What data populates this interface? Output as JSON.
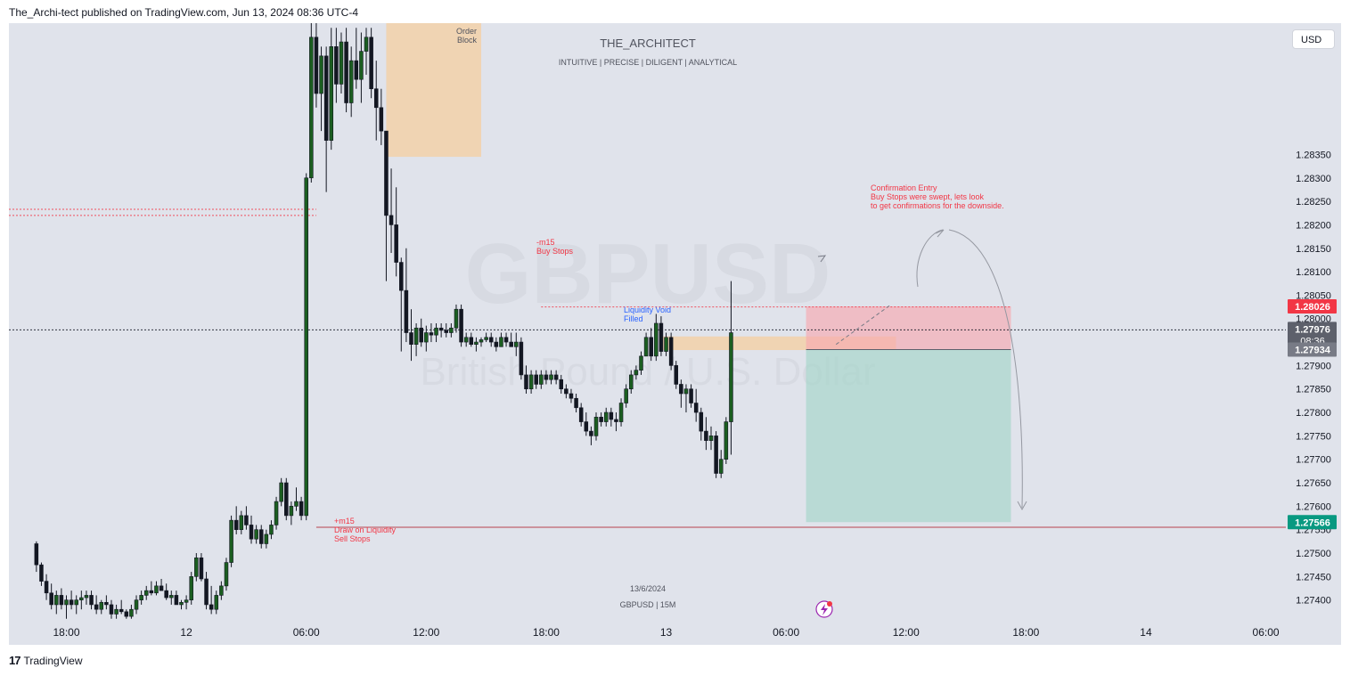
{
  "header": {
    "published": "The_Archi-tect published on TradingView.com, Jun 13, 2024 08:36 UTC-4"
  },
  "footer": {
    "logo_mark": "17",
    "brand": "TradingView"
  },
  "currency_button": "USD",
  "watermark": {
    "author": "THE_ARCHITECT",
    "motto": "INTUITIVE | PRECISE | DILIGENT | ANALYTICAL",
    "symbol": "GBPUSD",
    "name": "British Pound / U.S. Dollar",
    "date": "13/6/2024",
    "symbol_tf": "GBPUSD | 15M"
  },
  "colors": {
    "background": "#e0e3eb",
    "up_candle": "#1b5e20",
    "down_candle": "#131722",
    "axis_text": "#131722",
    "annotation_red": "#f23645",
    "annotation_blue": "#2962ff",
    "order_block": "#f5cfa0",
    "stop_zone": "#f7a9b0",
    "target_zone": "#a5d6c9",
    "target_line": "#b22833",
    "current_label": "#5d606b",
    "stop_label": "#f23645",
    "target_label": "#089981"
  },
  "chart_data": {
    "type": "candlestick",
    "symbol": "GBPUSD",
    "timeframe": "15M",
    "y_axis": {
      "range": [
        1.2735,
        1.2863
      ],
      "ticks": [
        "1.28350",
        "1.28300",
        "1.28250",
        "1.28200",
        "1.28150",
        "1.28100",
        "1.28050",
        "1.28000",
        "1.27900",
        "1.27850",
        "1.27800",
        "1.27750",
        "1.27700",
        "1.27650",
        "1.27600",
        "1.27550",
        "1.27500",
        "1.27450",
        "1.27400"
      ]
    },
    "x_axis": {
      "ticks": [
        {
          "label": "18:00",
          "bar": 6
        },
        {
          "label": "12",
          "bar": 30
        },
        {
          "label": "06:00",
          "bar": 54
        },
        {
          "label": "12:00",
          "bar": 78
        },
        {
          "label": "18:00",
          "bar": 102
        },
        {
          "label": "13",
          "bar": 126
        },
        {
          "label": "06:00",
          "bar": 150
        },
        {
          "label": "12:00",
          "bar": 174
        },
        {
          "label": "18:00",
          "bar": 198
        },
        {
          "label": "14",
          "bar": 222
        },
        {
          "label": "06:00",
          "bar": 246
        }
      ],
      "bar_range": [
        -5.5,
        250
      ]
    },
    "candles": [
      [
        1.2752,
        1.27525,
        1.2746,
        1.27475
      ],
      [
        1.27475,
        1.2748,
        1.2743,
        1.2744
      ],
      [
        1.2744,
        1.27455,
        1.274,
        1.27415
      ],
      [
        1.27415,
        1.27435,
        1.2738,
        1.2739
      ],
      [
        1.2739,
        1.2742,
        1.2737,
        1.2741
      ],
      [
        1.2741,
        1.27425,
        1.2738,
        1.2739
      ],
      [
        1.2739,
        1.2741,
        1.2736,
        1.274
      ],
      [
        1.274,
        1.2742,
        1.2738,
        1.2739
      ],
      [
        1.2739,
        1.2741,
        1.2737,
        1.274
      ],
      [
        1.274,
        1.2742,
        1.2738,
        1.27405
      ],
      [
        1.27405,
        1.2742,
        1.2739,
        1.2741
      ],
      [
        1.2741,
        1.2742,
        1.2738,
        1.2739
      ],
      [
        1.2739,
        1.2741,
        1.2737,
        1.2738
      ],
      [
        1.2738,
        1.274,
        1.2737,
        1.27395
      ],
      [
        1.27395,
        1.2741,
        1.2738,
        1.2739
      ],
      [
        1.2739,
        1.274,
        1.2736,
        1.2737
      ],
      [
        1.2737,
        1.2739,
        1.2736,
        1.2738
      ],
      [
        1.2738,
        1.274,
        1.2737,
        1.27375
      ],
      [
        1.27375,
        1.2738,
        1.2736,
        1.27365
      ],
      [
        1.27365,
        1.2739,
        1.2736,
        1.2738
      ],
      [
        1.2738,
        1.2741,
        1.2737,
        1.274
      ],
      [
        1.274,
        1.2742,
        1.2739,
        1.2741
      ],
      [
        1.2741,
        1.2743,
        1.274,
        1.2742
      ],
      [
        1.2742,
        1.2744,
        1.2741,
        1.27415
      ],
      [
        1.27415,
        1.2744,
        1.2741,
        1.2743
      ],
      [
        1.2743,
        1.27445,
        1.2742,
        1.2742
      ],
      [
        1.2742,
        1.27435,
        1.274,
        1.27405
      ],
      [
        1.27405,
        1.2742,
        1.2739,
        1.2741
      ],
      [
        1.2741,
        1.2742,
        1.2739,
        1.2739
      ],
      [
        1.2739,
        1.274,
        1.2738,
        1.27395
      ],
      [
        1.27395,
        1.2741,
        1.2738,
        1.274
      ],
      [
        1.274,
        1.2746,
        1.2739,
        1.2745
      ],
      [
        1.2745,
        1.275,
        1.2744,
        1.2749
      ],
      [
        1.2749,
        1.275,
        1.2744,
        1.27445
      ],
      [
        1.27445,
        1.2746,
        1.2738,
        1.2739
      ],
      [
        1.2739,
        1.2743,
        1.2737,
        1.2738
      ],
      [
        1.2738,
        1.2742,
        1.2737,
        1.2741
      ],
      [
        1.2741,
        1.2744,
        1.274,
        1.2743
      ],
      [
        1.2743,
        1.2749,
        1.2742,
        1.2748
      ],
      [
        1.2748,
        1.2758,
        1.2747,
        1.2757
      ],
      [
        1.2757,
        1.276,
        1.2754,
        1.2755
      ],
      [
        1.2755,
        1.2759,
        1.2754,
        1.2758
      ],
      [
        1.2758,
        1.276,
        1.2755,
        1.2756
      ],
      [
        1.2756,
        1.2758,
        1.2752,
        1.2753
      ],
      [
        1.2753,
        1.2756,
        1.2752,
        1.2755
      ],
      [
        1.2755,
        1.2756,
        1.2751,
        1.2752
      ],
      [
        1.2752,
        1.2755,
        1.2751,
        1.2754
      ],
      [
        1.2754,
        1.2757,
        1.2753,
        1.2756
      ],
      [
        1.2756,
        1.2762,
        1.2755,
        1.2761
      ],
      [
        1.2761,
        1.2766,
        1.276,
        1.2765
      ],
      [
        1.2765,
        1.2766,
        1.2757,
        1.2758
      ],
      [
        1.2758,
        1.2761,
        1.2756,
        1.276
      ],
      [
        1.276,
        1.2764,
        1.2759,
        1.2761
      ],
      [
        1.2761,
        1.2762,
        1.2757,
        1.2758
      ],
      [
        1.2758,
        1.2831,
        1.2757,
        1.283
      ],
      [
        1.283,
        1.2863,
        1.2829,
        1.286
      ],
      [
        1.286,
        1.2863,
        1.2845,
        1.2848
      ],
      [
        1.2848,
        1.2858,
        1.284,
        1.2856
      ],
      [
        1.2856,
        1.2858,
        1.2827,
        1.2838
      ],
      [
        1.2838,
        1.2862,
        1.2836,
        1.2858
      ],
      [
        1.2858,
        1.2862,
        1.2846,
        1.285
      ],
      [
        1.285,
        1.2861,
        1.2848,
        1.2859
      ],
      [
        1.2859,
        1.2862,
        1.2844,
        1.2846
      ],
      [
        1.2846,
        1.2858,
        1.2843,
        1.2855
      ],
      [
        1.2855,
        1.2862,
        1.2849,
        1.2851
      ],
      [
        1.2851,
        1.2861,
        1.2846,
        1.2857
      ],
      [
        1.2857,
        1.2862,
        1.2852,
        1.286
      ],
      [
        1.286,
        1.2862,
        1.2847,
        1.2849
      ],
      [
        1.2849,
        1.2855,
        1.2838,
        1.2845
      ],
      [
        1.2845,
        1.2849,
        1.2837,
        1.284
      ],
      [
        1.284,
        1.284,
        1.2808,
        1.2822
      ],
      [
        1.2822,
        1.2832,
        1.2814,
        1.282
      ],
      [
        1.282,
        1.2828,
        1.2809,
        1.2812
      ],
      [
        1.2812,
        1.2813,
        1.2793,
        1.2806
      ],
      [
        1.2806,
        1.2815,
        1.2795,
        1.2797
      ],
      [
        1.2797,
        1.2802,
        1.2791,
        1.27945
      ],
      [
        1.27945,
        1.2799,
        1.2792,
        1.2798
      ],
      [
        1.2798,
        1.28,
        1.2794,
        1.2795
      ],
      [
        1.2795,
        1.27985,
        1.2793,
        1.2797
      ],
      [
        1.2797,
        1.2799,
        1.2795,
        1.27965
      ],
      [
        1.27965,
        1.2799,
        1.2795,
        1.2798
      ],
      [
        1.2798,
        1.2799,
        1.2796,
        1.27975
      ],
      [
        1.27975,
        1.2799,
        1.2796,
        1.2797
      ],
      [
        1.2797,
        1.2799,
        1.2796,
        1.2798
      ],
      [
        1.2798,
        1.2803,
        1.2797,
        1.2802
      ],
      [
        1.2802,
        1.2803,
        1.2794,
        1.2795
      ],
      [
        1.2795,
        1.2797,
        1.2794,
        1.2796
      ],
      [
        1.2796,
        1.2797,
        1.2794,
        1.27945
      ],
      [
        1.27945,
        1.2796,
        1.2793,
        1.2795
      ],
      [
        1.2795,
        1.2796,
        1.2794,
        1.27955
      ],
      [
        1.27955,
        1.2797,
        1.2795,
        1.2796
      ],
      [
        1.2796,
        1.2797,
        1.2794,
        1.2795
      ],
      [
        1.2795,
        1.2796,
        1.2793,
        1.2794
      ],
      [
        1.2794,
        1.2797,
        1.2794,
        1.2796
      ],
      [
        1.2796,
        1.2797,
        1.2794,
        1.2795
      ],
      [
        1.2795,
        1.2797,
        1.2794,
        1.2794
      ],
      [
        1.2794,
        1.2797,
        1.2792,
        1.2795
      ],
      [
        1.2795,
        1.2796,
        1.2787,
        1.2788
      ],
      [
        1.2788,
        1.279,
        1.2784,
        1.2785
      ],
      [
        1.2785,
        1.2789,
        1.2784,
        1.2788
      ],
      [
        1.2788,
        1.2789,
        1.2785,
        1.2786
      ],
      [
        1.2786,
        1.2789,
        1.2785,
        1.2788
      ],
      [
        1.2788,
        1.2789,
        1.2786,
        1.2787
      ],
      [
        1.2787,
        1.2789,
        1.2786,
        1.2788
      ],
      [
        1.2788,
        1.2789,
        1.2786,
        1.2787
      ],
      [
        1.2787,
        1.2788,
        1.2784,
        1.2785
      ],
      [
        1.2785,
        1.2786,
        1.2783,
        1.2784
      ],
      [
        1.2784,
        1.2785,
        1.2782,
        1.2783
      ],
      [
        1.2783,
        1.2784,
        1.278,
        1.2781
      ],
      [
        1.2781,
        1.2782,
        1.2777,
        1.2778
      ],
      [
        1.2778,
        1.278,
        1.2775,
        1.2776
      ],
      [
        1.2776,
        1.2777,
        1.2773,
        1.2775
      ],
      [
        1.2775,
        1.278,
        1.2774,
        1.2779
      ],
      [
        1.2779,
        1.278,
        1.2777,
        1.2778
      ],
      [
        1.2778,
        1.2781,
        1.2777,
        1.278
      ],
      [
        1.278,
        1.2781,
        1.2777,
        1.27785
      ],
      [
        1.27785,
        1.278,
        1.2776,
        1.2778
      ],
      [
        1.2778,
        1.2783,
        1.2777,
        1.2782
      ],
      [
        1.2782,
        1.2786,
        1.2781,
        1.2785
      ],
      [
        1.2785,
        1.2789,
        1.2784,
        1.2788
      ],
      [
        1.2788,
        1.279,
        1.2787,
        1.2789
      ],
      [
        1.2789,
        1.2793,
        1.2788,
        1.2792
      ],
      [
        1.2792,
        1.2797,
        1.2792,
        1.2796
      ],
      [
        1.2796,
        1.2798,
        1.2791,
        1.2792
      ],
      [
        1.2792,
        1.2801,
        1.2791,
        1.2799
      ],
      [
        1.2799,
        1.28005,
        1.2792,
        1.2793
      ],
      [
        1.2793,
        1.2797,
        1.2792,
        1.2796
      ],
      [
        1.2796,
        1.2797,
        1.2789,
        1.279
      ],
      [
        1.279,
        1.2791,
        1.2785,
        1.2786
      ],
      [
        1.2786,
        1.2787,
        1.2781,
        1.2784
      ],
      [
        1.2784,
        1.2786,
        1.278,
        1.2785
      ],
      [
        1.2785,
        1.2786,
        1.2781,
        1.2782
      ],
      [
        1.2782,
        1.2785,
        1.2778,
        1.278
      ],
      [
        1.278,
        1.2781,
        1.2774,
        1.2776
      ],
      [
        1.2776,
        1.2779,
        1.2772,
        1.2774
      ],
      [
        1.2774,
        1.2777,
        1.2772,
        1.2775
      ],
      [
        1.2775,
        1.2776,
        1.2766,
        1.2767
      ],
      [
        1.2767,
        1.2772,
        1.2766,
        1.277
      ],
      [
        1.277,
        1.2779,
        1.2769,
        1.2778
      ],
      [
        1.2778,
        1.2808,
        1.2771,
        1.2797
      ]
    ],
    "price_levels": [
      {
        "price": 1.28025,
        "style": "dotted",
        "color": "#f23645",
        "label": "-m15\nBuy Stops"
      },
      {
        "price": 1.27976,
        "style": "dotted",
        "color": "#131722",
        "label": "current price"
      },
      {
        "price": 1.27555,
        "style": "solid",
        "color": "#b22833",
        "label": "+m15\nDraw on Liquidity\nSell Stops"
      },
      {
        "price": 1.28233,
        "style": "dotted",
        "color": "#f23645",
        "label": ""
      },
      {
        "price": 1.2822,
        "style": "dotted",
        "color": "#f23645",
        "label": ""
      }
    ],
    "zones": [
      {
        "name": "Order Block",
        "from_bar": 70,
        "to_bar": 89,
        "top": 1.2863,
        "bottom": 1.28345
      },
      {
        "name": "Liquidity Void Filled",
        "from_bar": 125,
        "to_bar": 172,
        "top": 1.27962,
        "bottom": 1.27933
      },
      {
        "name": "Stop zone",
        "from_bar": 154,
        "to_bar": 195,
        "top": 1.28026,
        "bottom": 1.27934
      },
      {
        "name": "Target zone",
        "from_bar": 154,
        "to_bar": 195,
        "top": 1.27934,
        "bottom": 1.27566
      }
    ],
    "price_labels": [
      {
        "value": "1.28026",
        "kind": "stop"
      },
      {
        "value": "1.27976",
        "time": "08:36",
        "kind": "current"
      },
      {
        "value": "1.27934",
        "kind": "entry"
      },
      {
        "value": "1.27566",
        "kind": "target"
      }
    ],
    "annotations": {
      "order_block": [
        "Order",
        "Block"
      ],
      "buy_stops": [
        "-m15",
        "Buy Stops"
      ],
      "liquidity_void": [
        "Liquidity Void",
        "Filled"
      ],
      "sell_stops": [
        "+m15",
        "Draw on Liquidity",
        "Sell Stops"
      ],
      "confirmation": [
        "Confirmation Entry",
        "Buy Stops were swept, lets look",
        "to get confirmations for the downside."
      ]
    }
  }
}
